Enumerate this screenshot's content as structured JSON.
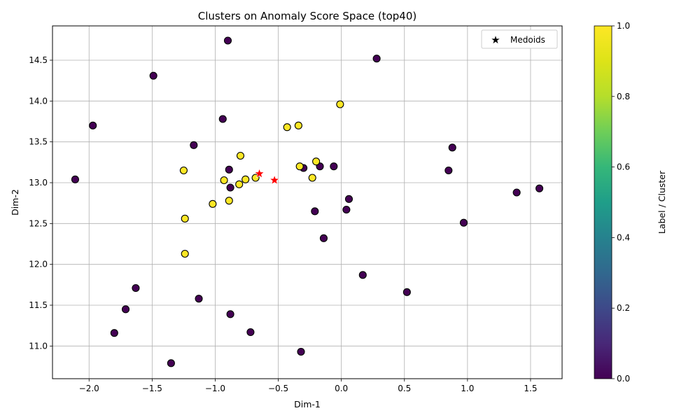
{
  "chart_data": {
    "type": "scatter",
    "title": "Clusters on Anomaly Score Space (top40)",
    "xlabel": "Dim-1",
    "ylabel": "Dim-2",
    "xlim": [
      -2.29,
      1.75
    ],
    "ylim": [
      10.6,
      14.92
    ],
    "xticks": [
      -2.0,
      -1.5,
      -1.0,
      -0.5,
      0.0,
      0.5,
      1.0,
      1.5
    ],
    "xtick_labels": [
      "−2.0",
      "−1.5",
      "−1.0",
      "−0.5",
      "0.0",
      "0.5",
      "1.0",
      "1.5"
    ],
    "yticks": [
      11.0,
      11.5,
      12.0,
      12.5,
      13.0,
      13.5,
      14.0,
      14.5
    ],
    "ytick_labels": [
      "11.0",
      "11.5",
      "12.0",
      "12.5",
      "13.0",
      "13.5",
      "14.0",
      "14.5"
    ],
    "grid": true,
    "legend": {
      "position": "top-right",
      "entries": [
        "Medoids"
      ]
    },
    "colorbar": {
      "label": "Label / Cluster",
      "range": [
        0.0,
        1.0
      ],
      "ticks": [
        0.0,
        0.2,
        0.4,
        0.6,
        0.8,
        1.0
      ],
      "tick_labels": [
        "0.0",
        "0.2",
        "0.4",
        "0.6",
        "0.8",
        "1.0"
      ],
      "colormap": "viridis"
    },
    "colors": {
      "cluster_0": "#440154",
      "cluster_1": "#fde725",
      "medoid": "#ff0000"
    },
    "points": [
      {
        "x": -0.9,
        "y": 14.74,
        "label": 0
      },
      {
        "x": 0.28,
        "y": 14.52,
        "label": 0
      },
      {
        "x": -1.49,
        "y": 14.31,
        "label": 0
      },
      {
        "x": -1.97,
        "y": 13.7,
        "label": 0
      },
      {
        "x": -0.94,
        "y": 13.78,
        "label": 0
      },
      {
        "x": -1.17,
        "y": 13.46,
        "label": 0
      },
      {
        "x": 0.88,
        "y": 13.43,
        "label": 0
      },
      {
        "x": -0.89,
        "y": 13.16,
        "label": 0
      },
      {
        "x": -0.3,
        "y": 13.18,
        "label": 0
      },
      {
        "x": -0.17,
        "y": 13.2,
        "label": 0
      },
      {
        "x": -0.06,
        "y": 13.2,
        "label": 0
      },
      {
        "x": 0.85,
        "y": 13.15,
        "label": 0
      },
      {
        "x": -2.11,
        "y": 13.04,
        "label": 0
      },
      {
        "x": -0.88,
        "y": 12.94,
        "label": 0
      },
      {
        "x": 1.39,
        "y": 12.88,
        "label": 0
      },
      {
        "x": 1.57,
        "y": 12.93,
        "label": 0
      },
      {
        "x": 0.06,
        "y": 12.8,
        "label": 0
      },
      {
        "x": 0.04,
        "y": 12.67,
        "label": 0
      },
      {
        "x": -0.21,
        "y": 12.65,
        "label": 0
      },
      {
        "x": 0.97,
        "y": 12.51,
        "label": 0
      },
      {
        "x": -0.14,
        "y": 12.32,
        "label": 0
      },
      {
        "x": 0.17,
        "y": 11.87,
        "label": 0
      },
      {
        "x": -1.63,
        "y": 11.71,
        "label": 0
      },
      {
        "x": 0.52,
        "y": 11.66,
        "label": 0
      },
      {
        "x": -1.13,
        "y": 11.58,
        "label": 0
      },
      {
        "x": -1.71,
        "y": 11.45,
        "label": 0
      },
      {
        "x": -0.88,
        "y": 11.39,
        "label": 0
      },
      {
        "x": -1.8,
        "y": 11.16,
        "label": 0
      },
      {
        "x": -0.72,
        "y": 11.17,
        "label": 0
      },
      {
        "x": -0.32,
        "y": 10.93,
        "label": 0
      },
      {
        "x": -1.35,
        "y": 10.79,
        "label": 0
      },
      {
        "x": -0.01,
        "y": 13.96,
        "label": 1
      },
      {
        "x": -0.43,
        "y": 13.68,
        "label": 1
      },
      {
        "x": -0.34,
        "y": 13.7,
        "label": 1
      },
      {
        "x": -0.8,
        "y": 13.33,
        "label": 1
      },
      {
        "x": -0.2,
        "y": 13.26,
        "label": 1
      },
      {
        "x": -0.33,
        "y": 13.2,
        "label": 1
      },
      {
        "x": -1.25,
        "y": 13.15,
        "label": 1
      },
      {
        "x": -0.93,
        "y": 13.03,
        "label": 1
      },
      {
        "x": -0.76,
        "y": 13.04,
        "label": 1
      },
      {
        "x": -0.68,
        "y": 13.06,
        "label": 1
      },
      {
        "x": -0.23,
        "y": 13.06,
        "label": 1
      },
      {
        "x": -0.81,
        "y": 12.98,
        "label": 1
      },
      {
        "x": -0.89,
        "y": 12.78,
        "label": 1
      },
      {
        "x": -1.02,
        "y": 12.74,
        "label": 1
      },
      {
        "x": -1.24,
        "y": 12.56,
        "label": 1
      },
      {
        "x": -1.24,
        "y": 12.13,
        "label": 1
      }
    ],
    "medoids": [
      {
        "x": -0.65,
        "y": 13.11
      },
      {
        "x": -0.53,
        "y": 13.03
      }
    ]
  }
}
